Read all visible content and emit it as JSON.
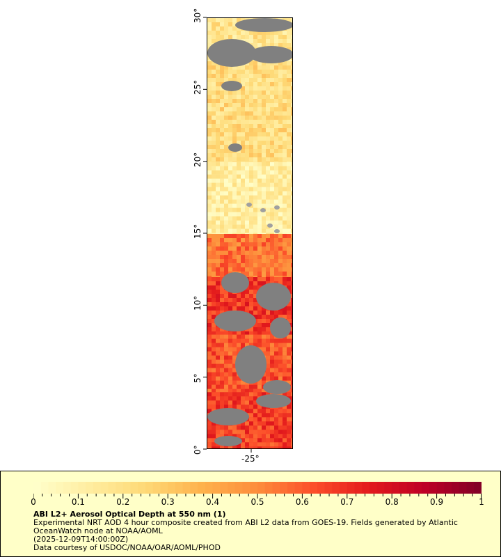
{
  "map": {
    "lat_ticks": [
      "0°",
      "5°",
      "10°",
      "15°",
      "20°",
      "25°",
      "30°"
    ],
    "lat_values": [
      0,
      5,
      10,
      15,
      20,
      25,
      30
    ],
    "lon_tick": "-25°",
    "lon_value": -25,
    "lat_range": [
      0,
      30
    ],
    "colors": {
      "no_data": "#808080",
      "land": "#a0a0a0"
    },
    "aod_regions": [
      {
        "lat_range": [
          27,
          30
        ],
        "aod": 0.18
      },
      {
        "lat_range": [
          20,
          27
        ],
        "aod": 0.22
      },
      {
        "lat_range": [
          15,
          20
        ],
        "aod": 0.12
      },
      {
        "lat_range": [
          12,
          15
        ],
        "aod": 0.55
      },
      {
        "lat_range": [
          8,
          12
        ],
        "aod": 0.68
      },
      {
        "lat_range": [
          4,
          8
        ],
        "aod": 0.62
      },
      {
        "lat_range": [
          0,
          4
        ],
        "aod": 0.66
      }
    ]
  },
  "legend": {
    "colorbar_ticks": [
      "0",
      "0.1",
      "0.2",
      "0.3",
      "0.4",
      "0.5",
      "0.6",
      "0.7",
      "0.8",
      "0.9",
      "1"
    ],
    "colorbar_range": [
      0,
      1
    ],
    "colorbar_colors": [
      "#ffffcc",
      "#ffeda0",
      "#fed976",
      "#feb24c",
      "#fd8d3c",
      "#fc4e2a",
      "#e31a1c",
      "#bd0026",
      "#800026"
    ],
    "title": "ABI L2+ Aerosol Optical Depth at 550 nm (1)",
    "line1": "Experimental NRT AOD 4 hour composite created from ABI L2 data from GOES-19. Fields generated by Atlantic OceanWatch node at NOAA/AOML",
    "line2": "(2025-12-09T14:00:00Z)",
    "line3": "Data courtesy of USDOC/NOAA/OAR/AOML/PHOD"
  }
}
